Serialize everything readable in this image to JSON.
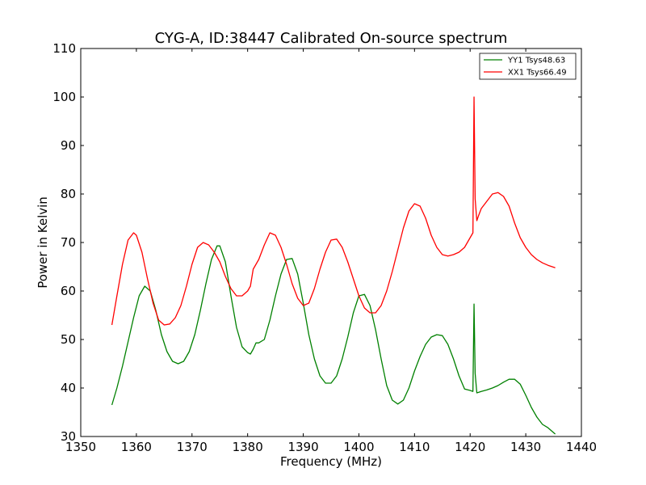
{
  "chart_data": {
    "type": "line",
    "title": "CYG-A, ID:38447 Calibrated On-source spectrum",
    "xlabel": "Frequency (MHz)",
    "ylabel": "Power in Kelvin",
    "xlim": [
      1350,
      1440
    ],
    "ylim": [
      30,
      110
    ],
    "xticks": [
      1350,
      1360,
      1370,
      1380,
      1390,
      1400,
      1410,
      1420,
      1430,
      1440
    ],
    "yticks": [
      30,
      40,
      50,
      60,
      70,
      80,
      90,
      100,
      110
    ],
    "grid": false,
    "legend_position": "top-right",
    "series": [
      {
        "name": "YY1 Tsys48.63",
        "color": "#008000",
        "x": [
          1355.6,
          1356.5,
          1357.5,
          1358.5,
          1359.5,
          1360.5,
          1361.5,
          1362.5,
          1363.5,
          1364.5,
          1365.5,
          1366.5,
          1367.5,
          1368.5,
          1369.5,
          1370.5,
          1371.5,
          1372.5,
          1373.5,
          1374.5,
          1375.0,
          1376.0,
          1377.0,
          1378.0,
          1379.0,
          1380.0,
          1380.5,
          1381.0,
          1381.5,
          1382.0,
          1383.0,
          1384.0,
          1385.0,
          1386.0,
          1387.0,
          1388.0,
          1389.0,
          1390.0,
          1391.0,
          1392.0,
          1393.0,
          1394.0,
          1395.0,
          1396.0,
          1397.0,
          1398.0,
          1399.0,
          1400.0,
          1401.0,
          1402.0,
          1403.0,
          1404.0,
          1405.0,
          1406.0,
          1407.0,
          1408.0,
          1409.0,
          1410.0,
          1411.0,
          1412.0,
          1413.0,
          1414.0,
          1415.0,
          1416.0,
          1417.0,
          1418.0,
          1419.0,
          1420.0,
          1420.5,
          1420.7,
          1420.9,
          1421.2,
          1421.5,
          1422.0,
          1423.0,
          1424.0,
          1425.0,
          1426.0,
          1427.0,
          1428.0,
          1429.0,
          1430.0,
          1431.0,
          1432.0,
          1433.0,
          1434.0,
          1435.3
        ],
        "values": [
          36.5,
          40.0,
          44.5,
          49.5,
          54.5,
          59.0,
          61.0,
          60.0,
          56.0,
          51.0,
          47.5,
          45.5,
          45.0,
          45.5,
          47.5,
          51.0,
          56.0,
          61.5,
          66.5,
          69.3,
          69.3,
          66.0,
          59.0,
          52.5,
          48.5,
          47.3,
          47.0,
          48.0,
          49.3,
          49.3,
          50.0,
          54.0,
          59.0,
          63.5,
          66.5,
          66.7,
          63.5,
          57.5,
          51.0,
          46.0,
          42.5,
          41.0,
          41.0,
          42.5,
          46.0,
          50.5,
          55.5,
          59.0,
          59.3,
          57.0,
          52.0,
          46.0,
          40.5,
          37.5,
          36.7,
          37.5,
          40.0,
          43.5,
          46.5,
          49.0,
          50.5,
          51.0,
          50.8,
          49.0,
          46.0,
          42.5,
          39.8,
          39.5,
          39.3,
          57.3,
          43.0,
          39.0,
          39.1,
          39.3,
          39.6,
          40.0,
          40.5,
          41.2,
          41.8,
          41.8,
          40.8,
          38.5,
          36.0,
          34.0,
          32.5,
          31.8,
          30.5
        ]
      },
      {
        "name": "XX1 Tsys66.49",
        "color": "#ff0000",
        "x": [
          1355.6,
          1356.5,
          1357.5,
          1358.5,
          1359.5,
          1360.0,
          1361.0,
          1362.0,
          1363.0,
          1364.0,
          1365.0,
          1366.0,
          1367.0,
          1368.0,
          1369.0,
          1370.0,
          1371.0,
          1372.0,
          1373.0,
          1374.0,
          1375.0,
          1376.0,
          1377.0,
          1378.0,
          1379.0,
          1380.0,
          1380.5,
          1381.0,
          1381.5,
          1382.0,
          1383.0,
          1384.0,
          1385.0,
          1386.0,
          1387.0,
          1388.0,
          1389.0,
          1390.0,
          1391.0,
          1392.0,
          1393.0,
          1394.0,
          1395.0,
          1396.0,
          1397.0,
          1398.0,
          1399.0,
          1400.0,
          1401.0,
          1402.0,
          1403.0,
          1404.0,
          1405.0,
          1406.0,
          1407.0,
          1408.0,
          1409.0,
          1410.0,
          1411.0,
          1412.0,
          1413.0,
          1414.0,
          1415.0,
          1416.0,
          1417.0,
          1418.0,
          1419.0,
          1420.0,
          1420.5,
          1420.7,
          1420.9,
          1421.2,
          1421.5,
          1422.0,
          1423.0,
          1424.0,
          1425.0,
          1426.0,
          1427.0,
          1428.0,
          1429.0,
          1430.0,
          1431.0,
          1432.0,
          1433.0,
          1434.0,
          1435.3
        ],
        "values": [
          53.0,
          59.0,
          65.5,
          70.5,
          72.0,
          71.5,
          68.0,
          62.5,
          57.5,
          54.0,
          53.0,
          53.2,
          54.5,
          57.0,
          61.0,
          65.5,
          69.0,
          70.0,
          69.5,
          68.0,
          66.0,
          63.0,
          60.5,
          59.0,
          59.0,
          60.0,
          61.0,
          64.5,
          65.5,
          66.5,
          69.5,
          72.0,
          71.5,
          69.0,
          65.5,
          61.5,
          58.5,
          57.0,
          57.5,
          60.5,
          64.5,
          68.0,
          70.5,
          70.7,
          69.0,
          66.0,
          62.5,
          59.0,
          56.5,
          55.5,
          55.5,
          57.0,
          60.0,
          64.0,
          68.5,
          73.0,
          76.5,
          78.0,
          77.5,
          75.0,
          71.5,
          69.0,
          67.5,
          67.2,
          67.5,
          68.0,
          69.0,
          71.0,
          72.0,
          100.0,
          79.0,
          74.5,
          75.5,
          77.0,
          78.5,
          80.0,
          80.3,
          79.5,
          77.5,
          74.0,
          71.0,
          69.0,
          67.5,
          66.5,
          65.8,
          65.3,
          64.8
        ]
      }
    ]
  }
}
